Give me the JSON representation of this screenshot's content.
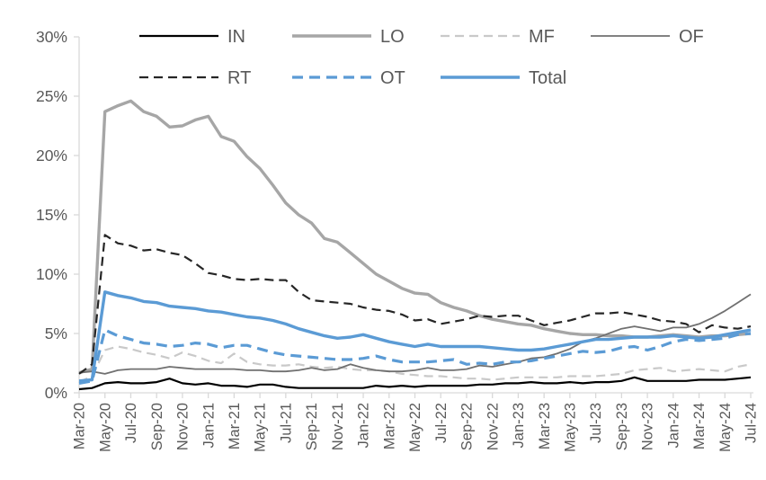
{
  "figure": {
    "background": "#ffffff",
    "text_color": "#595959",
    "axis_line_color": "#d9d9d9",
    "tick_color": "#d9d9d9"
  },
  "chart_data": {
    "type": "line",
    "title": "",
    "xlabel": "",
    "ylabel": "",
    "grid": false,
    "legend_position": "top",
    "legend_rows": [
      [
        "IN",
        "LO",
        "MF",
        "OF"
      ],
      [
        "RT",
        "OT",
        "Total"
      ]
    ],
    "y_axis": {
      "min": 0,
      "max": 30,
      "step": 5,
      "tick_labels": [
        "0%",
        "5%",
        "10%",
        "15%",
        "20%",
        "25%",
        "30%"
      ]
    },
    "x_tick_step": 2,
    "x": [
      "Mar-20",
      "Apr-20",
      "May-20",
      "Jun-20",
      "Jul-20",
      "Aug-20",
      "Sep-20",
      "Oct-20",
      "Nov-20",
      "Dec-20",
      "Jan-21",
      "Feb-21",
      "Mar-21",
      "Apr-21",
      "May-21",
      "Jun-21",
      "Jul-21",
      "Aug-21",
      "Sep-21",
      "Oct-21",
      "Nov-21",
      "Dec-21",
      "Jan-22",
      "Feb-22",
      "Mar-22",
      "Apr-22",
      "May-22",
      "Jun-22",
      "Jul-22",
      "Aug-22",
      "Sep-22",
      "Oct-22",
      "Nov-22",
      "Dec-22",
      "Jan-23",
      "Feb-23",
      "Mar-23",
      "Apr-23",
      "May-23",
      "Jun-23",
      "Jul-23",
      "Aug-23",
      "Sep-23",
      "Oct-23",
      "Nov-23",
      "Dec-23",
      "Jan-24",
      "Feb-24",
      "Mar-24",
      "Apr-24",
      "May-24",
      "Jun-24",
      "Jul-24"
    ],
    "series": [
      {
        "name": "IN",
        "color": "#000000",
        "dash": "solid",
        "width": 2.2,
        "values": [
          0.3,
          0.4,
          0.8,
          0.9,
          0.8,
          0.8,
          0.9,
          1.2,
          0.8,
          0.7,
          0.8,
          0.6,
          0.6,
          0.5,
          0.7,
          0.7,
          0.5,
          0.4,
          0.4,
          0.4,
          0.4,
          0.4,
          0.4,
          0.6,
          0.5,
          0.6,
          0.5,
          0.6,
          0.6,
          0.6,
          0.6,
          0.7,
          0.7,
          0.8,
          0.8,
          0.9,
          0.8,
          0.8,
          0.9,
          0.8,
          0.9,
          0.9,
          1.0,
          1.3,
          1.0,
          1.0,
          1.0,
          1.0,
          1.1,
          1.1,
          1.1,
          1.2,
          1.3
        ]
      },
      {
        "name": "LO",
        "color": "#a6a6a6",
        "dash": "solid",
        "width": 3.4,
        "values": [
          1.7,
          2.0,
          23.7,
          24.2,
          24.6,
          23.7,
          23.3,
          22.4,
          22.5,
          23.0,
          23.3,
          21.6,
          21.2,
          19.9,
          18.9,
          17.5,
          16.0,
          15.0,
          14.3,
          13.0,
          12.7,
          11.8,
          10.9,
          10.0,
          9.4,
          8.8,
          8.4,
          8.3,
          7.6,
          7.2,
          6.9,
          6.5,
          6.2,
          6.0,
          5.8,
          5.7,
          5.4,
          5.2,
          5.0,
          4.9,
          4.9,
          4.8,
          4.8,
          4.7,
          4.7,
          4.8,
          4.9,
          4.8,
          4.7,
          4.8,
          4.8,
          4.9,
          5.0
        ]
      },
      {
        "name": "MF",
        "color": "#c9c9c9",
        "dash": "dashed",
        "width": 2.2,
        "values": [
          0.9,
          1.4,
          3.6,
          3.9,
          3.7,
          3.4,
          3.2,
          2.9,
          3.4,
          3.1,
          2.7,
          2.5,
          3.3,
          2.6,
          2.4,
          2.3,
          2.3,
          2.4,
          2.2,
          2.1,
          2.2,
          2.0,
          1.9,
          1.9,
          1.8,
          1.6,
          1.5,
          1.4,
          1.4,
          1.3,
          1.2,
          1.2,
          1.1,
          1.2,
          1.3,
          1.3,
          1.3,
          1.3,
          1.4,
          1.4,
          1.4,
          1.5,
          1.6,
          1.9,
          2.0,
          2.1,
          1.8,
          1.9,
          2.0,
          1.9,
          1.8,
          2.2,
          2.4
        ]
      },
      {
        "name": "OF",
        "color": "#707070",
        "dash": "solid",
        "width": 1.8,
        "values": [
          1.7,
          1.8,
          1.6,
          1.9,
          2.0,
          2.0,
          2.0,
          2.2,
          2.1,
          2.0,
          2.0,
          2.0,
          2.0,
          1.9,
          1.9,
          1.8,
          1.8,
          1.9,
          2.1,
          1.9,
          2.0,
          2.4,
          2.1,
          1.9,
          1.8,
          1.8,
          1.9,
          2.1,
          1.9,
          1.9,
          2.0,
          2.3,
          2.2,
          2.4,
          2.6,
          2.9,
          3.0,
          3.3,
          3.7,
          4.3,
          4.6,
          5.0,
          5.4,
          5.6,
          5.4,
          5.2,
          5.5,
          5.5,
          5.8,
          6.3,
          6.9,
          7.6,
          8.3
        ]
      },
      {
        "name": "RT",
        "color": "#262626",
        "dash": "dashed",
        "width": 2.2,
        "values": [
          1.6,
          2.4,
          13.3,
          12.6,
          12.4,
          12.0,
          12.1,
          11.8,
          11.6,
          10.9,
          10.1,
          9.9,
          9.6,
          9.5,
          9.6,
          9.5,
          9.5,
          8.5,
          7.8,
          7.7,
          7.6,
          7.5,
          7.2,
          7.0,
          6.9,
          6.6,
          6.1,
          6.2,
          5.8,
          6.0,
          6.2,
          6.5,
          6.4,
          6.5,
          6.5,
          6.1,
          5.7,
          5.9,
          6.1,
          6.4,
          6.7,
          6.7,
          6.8,
          6.6,
          6.4,
          6.1,
          6.0,
          5.8,
          5.1,
          5.7,
          5.5,
          5.4,
          5.6
        ]
      },
      {
        "name": "OT",
        "color": "#5b9bd5",
        "dash": "dashed",
        "width": 3.2,
        "values": [
          0.8,
          1.0,
          5.3,
          4.8,
          4.5,
          4.2,
          4.1,
          3.9,
          4.0,
          4.2,
          4.1,
          3.8,
          4.0,
          4.0,
          3.7,
          3.4,
          3.2,
          3.1,
          3.0,
          2.9,
          2.8,
          2.8,
          2.9,
          3.1,
          2.8,
          2.6,
          2.6,
          2.6,
          2.7,
          2.8,
          2.4,
          2.5,
          2.4,
          2.6,
          2.6,
          2.7,
          2.9,
          3.1,
          3.3,
          3.5,
          3.4,
          3.5,
          3.8,
          3.9,
          3.6,
          3.9,
          4.3,
          4.5,
          4.4,
          4.5,
          4.6,
          4.9,
          5.0
        ]
      },
      {
        "name": "Total",
        "color": "#5b9bd5",
        "dash": "solid",
        "width": 3.4,
        "values": [
          1.0,
          1.1,
          8.5,
          8.2,
          8.0,
          7.7,
          7.6,
          7.3,
          7.2,
          7.1,
          6.9,
          6.8,
          6.6,
          6.4,
          6.3,
          6.1,
          5.8,
          5.4,
          5.1,
          4.8,
          4.6,
          4.7,
          4.9,
          4.6,
          4.3,
          4.1,
          3.9,
          4.1,
          3.9,
          3.9,
          3.9,
          3.9,
          3.8,
          3.7,
          3.6,
          3.6,
          3.7,
          3.9,
          4.1,
          4.3,
          4.5,
          4.5,
          4.6,
          4.7,
          4.7,
          4.7,
          4.8,
          4.7,
          4.6,
          4.7,
          4.9,
          5.1,
          5.3
        ]
      }
    ]
  }
}
